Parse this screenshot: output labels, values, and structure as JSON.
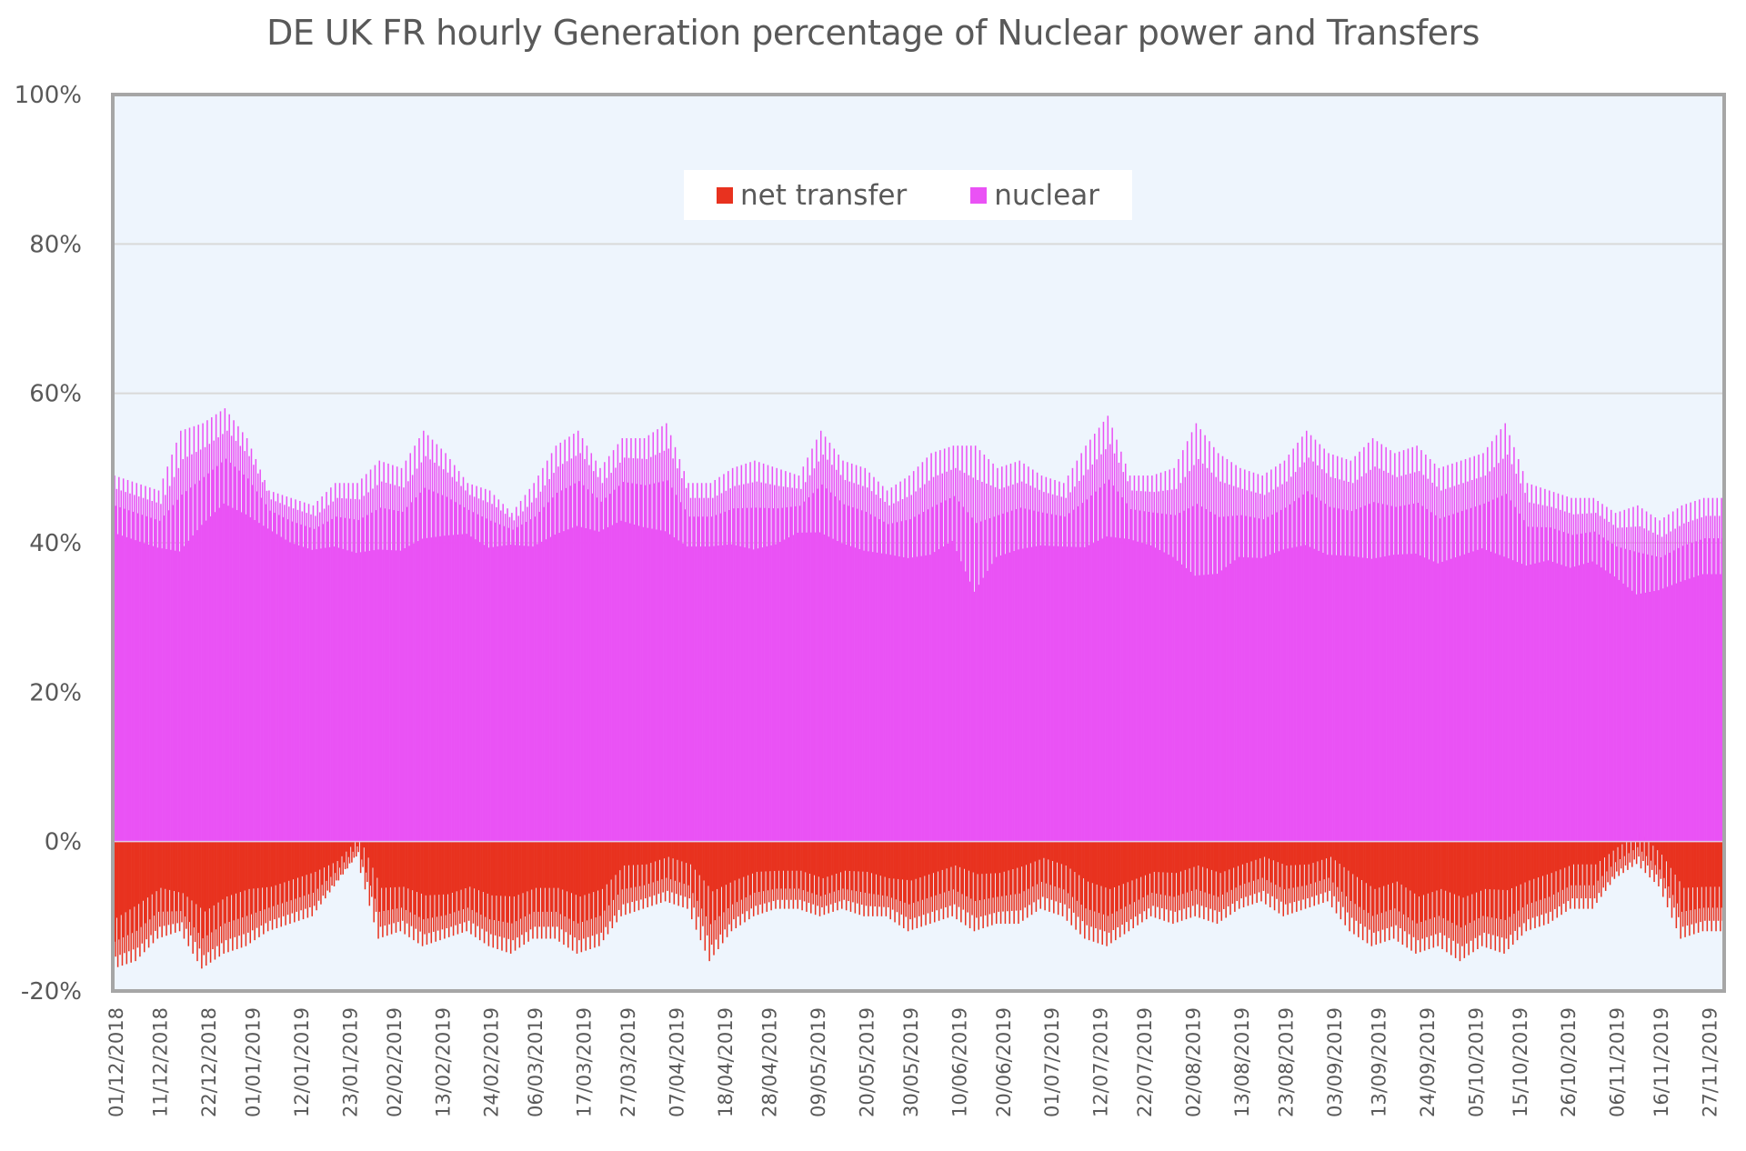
{
  "chart_data": {
    "type": "bar",
    "title": "DE UK FR hourly Generation percentage of Nuclear power and Transfers",
    "xlabel": "",
    "ylabel": "",
    "ylim": [
      -20,
      100
    ],
    "yticks": [
      "100%",
      "80%",
      "60%",
      "40%",
      "20%",
      "0%",
      "-20%"
    ],
    "ytick_values": [
      100,
      80,
      60,
      40,
      20,
      0,
      -20
    ],
    "grid": true,
    "legend_position": "top-center",
    "x_start": "01/12/2018",
    "x_end": "30/11/2019",
    "x_sample_step_days": 5,
    "xticks": [
      "01/12/2018",
      "11/12/2018",
      "22/12/2018",
      "01/01/2019",
      "12/01/2019",
      "23/01/2019",
      "02/02/2019",
      "13/02/2019",
      "24/02/2019",
      "06/03/2019",
      "17/03/2019",
      "27/03/2019",
      "07/04/2019",
      "18/04/2019",
      "28/04/2019",
      "09/05/2019",
      "20/05/2019",
      "30/05/2019",
      "10/06/2019",
      "20/06/2019",
      "01/07/2019",
      "12/07/2019",
      "22/07/2019",
      "02/08/2019",
      "13/08/2019",
      "23/08/2019",
      "03/09/2019",
      "13/09/2019",
      "24/09/2019",
      "05/10/2019",
      "15/10/2019",
      "26/10/2019",
      "06/11/2019",
      "16/11/2019",
      "27/11/2019"
    ],
    "xtick_day_offsets": [
      0,
      10,
      21,
      31,
      42,
      53,
      63,
      74,
      85,
      95,
      106,
      116,
      127,
      138,
      148,
      159,
      170,
      180,
      191,
      201,
      212,
      223,
      233,
      244,
      255,
      265,
      276,
      286,
      297,
      308,
      318,
      329,
      340,
      350,
      361
    ],
    "series": [
      {
        "name": "net transfer",
        "color": "#e8321f",
        "low": [
          -17,
          -16,
          -13,
          -12,
          -17,
          -15,
          -14,
          -12,
          -11,
          -10,
          -6,
          -2,
          -13,
          -12,
          -14,
          -13,
          -12,
          -14,
          -15,
          -13,
          -13,
          -15,
          -14,
          -10,
          -9,
          -8,
          -9,
          -16,
          -12,
          -10,
          -9,
          -9,
          -10,
          -9,
          -10,
          -10,
          -12,
          -11,
          -10,
          -12,
          -11,
          -11,
          -9,
          -10,
          -13,
          -14,
          -12,
          -10,
          -11,
          -10,
          -11,
          -9,
          -8,
          -10,
          -9,
          -8,
          -12,
          -14,
          -13,
          -15,
          -14,
          -16,
          -14,
          -15,
          -12,
          -11,
          -9,
          -9,
          -5,
          -3,
          -6,
          -13,
          -12
        ],
        "high": [
          -9,
          -7,
          -5,
          -6,
          -8,
          -6,
          -5,
          -5,
          -4,
          -3,
          -2,
          1,
          -5,
          -5,
          -6,
          -6,
          -5,
          -6,
          -6,
          -5,
          -5,
          -6,
          -5,
          -2,
          -2,
          -1,
          -2,
          -5,
          -4,
          -3,
          -3,
          -3,
          -4,
          -3,
          -3,
          -4,
          -4,
          -3,
          -2,
          -3,
          -3,
          -2,
          -1,
          -2,
          -4,
          -5,
          -4,
          -3,
          -3,
          -2,
          -3,
          -2,
          -1,
          -2,
          -2,
          -1,
          -3,
          -5,
          -4,
          -6,
          -5,
          -6,
          -5,
          -5,
          -4,
          -3,
          -2,
          -2,
          0,
          2,
          -1,
          -5,
          -5
        ]
      },
      {
        "name": "nuclear",
        "color": "#ea52f5",
        "low": [
          40,
          39,
          38,
          36,
          40,
          43,
          42,
          41,
          39,
          38,
          38,
          37,
          37,
          37,
          38,
          39,
          40,
          38,
          39,
          38,
          39,
          40,
          40,
          41,
          40,
          39,
          38,
          38,
          38,
          37,
          38,
          40,
          39,
          38,
          37,
          37,
          36,
          36,
          38,
          30,
          36,
          37,
          38,
          38,
          37,
          38,
          39,
          38,
          36,
          32,
          33,
          36,
          36,
          37,
          37,
          36,
          36,
          35,
          36,
          36,
          35,
          36,
          37,
          35,
          35,
          36,
          35,
          36,
          34,
          31,
          32,
          33,
          34
        ],
        "high": [
          49,
          48,
          47,
          55,
          56,
          58,
          54,
          47,
          46,
          45,
          48,
          48,
          51,
          50,
          55,
          52,
          48,
          47,
          44,
          48,
          53,
          55,
          50,
          54,
          54,
          56,
          48,
          48,
          50,
          51,
          50,
          49,
          55,
          51,
          50,
          47,
          49,
          52,
          53,
          53,
          50,
          51,
          49,
          48,
          53,
          57,
          49,
          49,
          50,
          56,
          52,
          50,
          49,
          51,
          55,
          52,
          51,
          54,
          52,
          53,
          50,
          51,
          52,
          56,
          48,
          47,
          46,
          46,
          44,
          45,
          43,
          45,
          46
        ]
      }
    ]
  }
}
